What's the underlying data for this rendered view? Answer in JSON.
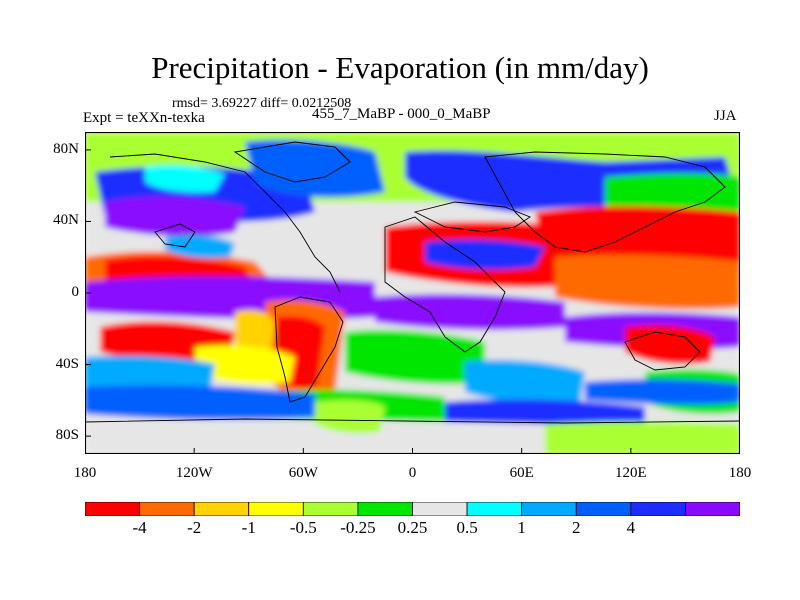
{
  "title": "Precipitation - Evaporation (in mm/day)",
  "stats": "rmsd= 3.69227 diff= 0.0212508",
  "experiment": "Expt = teXXn-texka",
  "difference_label": "455_7_MaBP - 000_0_MaBP",
  "season": "JJA",
  "chart_data": {
    "type": "heatmap",
    "title": "Precipitation - Evaporation (in mm/day)",
    "x_ticks": [
      "180",
      "120W",
      "60W",
      "0",
      "60E",
      "120E",
      "180"
    ],
    "x_values": [
      -180,
      -120,
      -60,
      0,
      60,
      120,
      180
    ],
    "y_ticks": [
      "80N",
      "40N",
      "0",
      "40S",
      "80S"
    ],
    "y_values": [
      80,
      40,
      0,
      -40,
      -80
    ],
    "xlim": [
      -180,
      180
    ],
    "ylim": [
      -90,
      90
    ],
    "colorbar": {
      "labels": [
        "-4",
        "-2",
        "-1",
        "-0.5",
        "-0.25",
        "0.25",
        "0.5",
        "1",
        "2",
        "4"
      ],
      "levels": [
        -4,
        -2,
        -1,
        -0.5,
        -0.25,
        0.25,
        0.5,
        1,
        2,
        4
      ],
      "colors": [
        "#ff0000",
        "#ff6a00",
        "#ffd200",
        "#ffff00",
        "#aaff33",
        "#00e600",
        "#e6e6e6",
        "#00ffff",
        "#00aaff",
        "#0060ff",
        "#1e2dff",
        "#8a0aff"
      ]
    }
  }
}
